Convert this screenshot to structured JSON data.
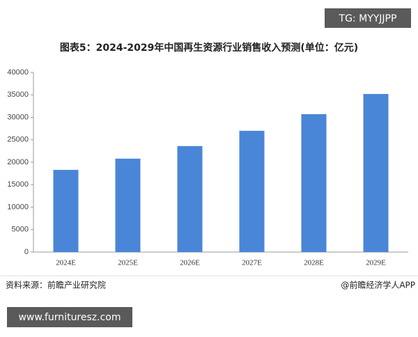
{
  "chart_data": {
    "type": "bar",
    "title": "图表5：2024-2029年中国再生资源行业销售收入预测(单位：亿元)",
    "categories": [
      "2024E",
      "2025E",
      "2026E",
      "2027E",
      "2028E",
      "2029E"
    ],
    "values": [
      18300,
      20800,
      23600,
      27000,
      30700,
      35200
    ],
    "color": "#4a86d8",
    "ylim": [
      0,
      40000
    ],
    "yticks": [
      0,
      5000,
      10000,
      15000,
      20000,
      25000,
      30000,
      35000,
      40000
    ],
    "grid": false,
    "source": "资料来源：前瞻产业研究院",
    "credit": "@前瞻经济学人APP"
  },
  "overlays": {
    "top_right": "TG: MYYJJPP",
    "bottom_left": "www.furnituresz.com"
  }
}
